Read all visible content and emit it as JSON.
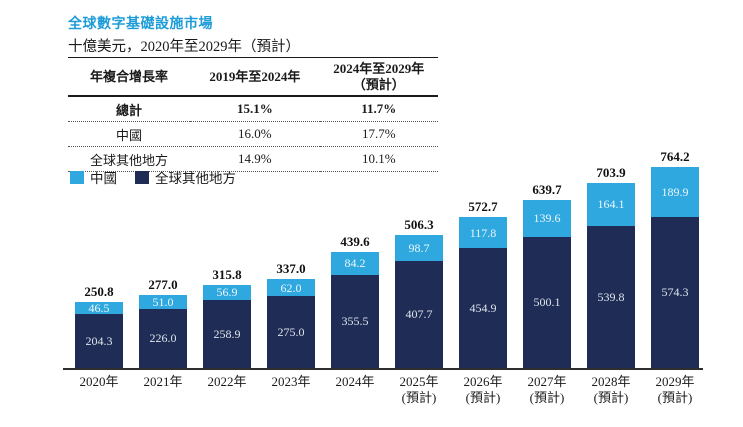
{
  "page": {
    "title": "全球數字基礎設施市場",
    "subtitle": "十億美元，2020年至2029年（預計）"
  },
  "cagr_table": {
    "header": {
      "col1": "年複合增長率",
      "col2": "2019年至2024年",
      "col3_line1": "2024年至2029年",
      "col3_line2": "（預計）"
    },
    "rows": [
      {
        "label": "總計",
        "period1": "15.1%",
        "period2": "11.7%"
      },
      {
        "label": "中國",
        "period1": "16.0%",
        "period2": "17.7%"
      },
      {
        "label": "全球其他地方",
        "period1": "14.9%",
        "period2": "10.1%"
      }
    ]
  },
  "legend": {
    "items": [
      {
        "label": "中國",
        "color": "#2FA8DF"
      },
      {
        "label": "全球其他地方",
        "color": "#1F2C55"
      }
    ]
  },
  "colors": {
    "china_blue": "#2FA8DF",
    "rest_navy": "#1F2C55",
    "title_blue": "#1E9CD8"
  },
  "chart_data": {
    "type": "bar",
    "stacked": true,
    "title": "全球數字基礎設施市場",
    "unit": "十億美元",
    "grid": false,
    "legend_position": "top-left",
    "ylim": [
      0,
      800
    ],
    "categories": [
      "2020年",
      "2021年",
      "2022年",
      "2023年",
      "2024年",
      "2025年",
      "2026年",
      "2027年",
      "2028年",
      "2029年"
    ],
    "category_sublabels": [
      "",
      "",
      "",
      "",
      "",
      "(預計)",
      "(預計)",
      "(預計)",
      "(預計)",
      "(預計)"
    ],
    "series": [
      {
        "name": "中國",
        "color": "#2FA8DF",
        "values": [
          46.5,
          51.0,
          56.9,
          62.0,
          84.2,
          98.7,
          117.8,
          139.6,
          164.1,
          189.9
        ]
      },
      {
        "name": "全球其他地方",
        "color": "#1F2C55",
        "values": [
          204.3,
          226.0,
          258.9,
          275.0,
          355.5,
          407.7,
          454.9,
          500.1,
          539.8,
          574.3
        ]
      }
    ],
    "totals": [
      250.8,
      277.0,
      315.8,
      337.0,
      439.6,
      506.3,
      572.7,
      639.7,
      703.9,
      764.2
    ]
  }
}
